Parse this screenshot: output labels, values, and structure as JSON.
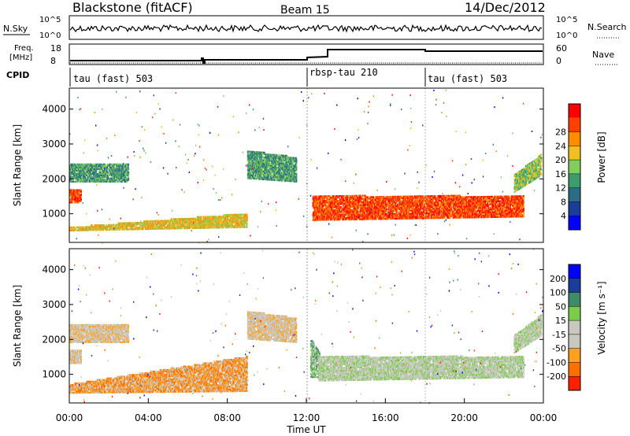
{
  "header": {
    "station": "Blackstone (fitACF)",
    "beam": "Beam 15",
    "date": "14/Dec/2012"
  },
  "top_panels": {
    "nsky_label": "N.Sky",
    "nsearch_label": "N.Search",
    "noise_ticks": [
      "10^5",
      "10^0"
    ],
    "freq_label_line1": "Freq.",
    "freq_label_line2": "[MHz]",
    "freq_ticks": [
      "18",
      "8"
    ],
    "nave_ticks": [
      "60",
      "0"
    ],
    "nave_label": "Nave",
    "cpid_label": "CPID",
    "cpid_segments": [
      {
        "label": "tau (fast) 503",
        "start_h": 0
      },
      {
        "label": "rbsp-tau 210",
        "start_h": 12.0
      },
      {
        "label": "tau (fast) 503",
        "start_h": 18.0
      }
    ]
  },
  "colors": {
    "power_scale": [
      "#0000ff",
      "#1c3c9c",
      "#2c6c84",
      "#3c9c6c",
      "#84cc5c",
      "#f0c020",
      "#ff8c00",
      "#ff4000",
      "#ff0000"
    ],
    "velocity_scale": [
      "#0000ff",
      "#1c3c9c",
      "#3c8c6c",
      "#7ccc4c",
      "#c8c8c0",
      "#c8c8c0",
      "#ffa020",
      "#ff7000",
      "#ff2000"
    ]
  },
  "chart_data": [
    {
      "type": "heatmap",
      "name": "Power",
      "xlabel": "Time UT",
      "ylabel": "Slant Range [km]",
      "x_range_h": [
        0,
        24
      ],
      "ylim": [
        180,
        4600
      ],
      "x_ticks": [
        "00:00",
        "04:00",
        "08:00",
        "12:00",
        "16:00",
        "20:00",
        "00:00"
      ],
      "y_ticks": [
        1000,
        2000,
        3000,
        4000
      ],
      "colorbar_label": "Power [dB]",
      "colorbar_ticks": [
        "4",
        "8",
        "12",
        "16",
        "20",
        "24",
        "28"
      ],
      "bands": [
        {
          "t0": 0.0,
          "t1": 9.0,
          "r0_start": 500,
          "r0_end": 600,
          "r1_start": 600,
          "r1_end": 1000,
          "dominant": 5
        },
        {
          "t0": 0.0,
          "t1": 0.6,
          "r0_start": 1300,
          "r0_end": 1300,
          "r1_start": 1700,
          "r1_end": 1700,
          "dominant": 7
        },
        {
          "t0": 0.0,
          "t1": 3.0,
          "r0_start": 1900,
          "r0_end": 1900,
          "r1_start": 2400,
          "r1_end": 2400,
          "dominant": 3
        },
        {
          "t0": 9.0,
          "t1": 11.5,
          "r0_start": 2000,
          "r0_end": 1900,
          "r1_start": 2800,
          "r1_end": 2600,
          "dominant": 3
        },
        {
          "t0": 12.3,
          "t1": 23.0,
          "r0_start": 800,
          "r0_end": 900,
          "r1_start": 1500,
          "r1_end": 1500,
          "dominant": 7
        },
        {
          "t0": 22.5,
          "t1": 23.9,
          "r0_start": 1600,
          "r0_end": 2100,
          "r1_start": 2100,
          "r1_end": 2700,
          "dominant": 4
        }
      ]
    },
    {
      "type": "heatmap",
      "name": "Velocity",
      "xlabel": "Time UT",
      "ylabel": "Slant Range [km]",
      "x_range_h": [
        0,
        24
      ],
      "ylim": [
        180,
        4600
      ],
      "x_ticks": [
        "00:00",
        "04:00",
        "08:00",
        "12:00",
        "16:00",
        "20:00",
        "00:00"
      ],
      "y_ticks": [
        1000,
        2000,
        3000,
        4000
      ],
      "colorbar_label": "Velocity [m s⁻¹]",
      "colorbar_ticks": [
        "200",
        "100",
        "50",
        "15",
        "-15",
        "-50",
        "-100",
        "-200"
      ],
      "bands": [
        {
          "t0": 0.0,
          "t1": 9.0,
          "r0_start": 450,
          "r0_end": 500,
          "r1_start": 700,
          "r1_end": 1500,
          "dominant": 6
        },
        {
          "t0": 0.0,
          "t1": 0.6,
          "r0_start": 1300,
          "r0_end": 1300,
          "r1_start": 1700,
          "r1_end": 1700,
          "dominant": 5
        },
        {
          "t0": 0.0,
          "t1": 3.0,
          "r0_start": 1900,
          "r0_end": 1900,
          "r1_start": 2400,
          "r1_end": 2400,
          "dominant": 5
        },
        {
          "t0": 9.0,
          "t1": 11.5,
          "r0_start": 2000,
          "r0_end": 1900,
          "r1_start": 2800,
          "r1_end": 2600,
          "dominant": 5
        },
        {
          "t0": 12.2,
          "t1": 12.7,
          "r0_start": 900,
          "r0_end": 900,
          "r1_start": 2000,
          "r1_end": 1600,
          "dominant": 3
        },
        {
          "t0": 12.6,
          "t1": 23.0,
          "r0_start": 800,
          "r0_end": 900,
          "r1_start": 1500,
          "r1_end": 1500,
          "dominant": 4
        },
        {
          "t0": 22.5,
          "t1": 23.9,
          "r0_start": 1600,
          "r0_end": 2100,
          "r1_start": 2100,
          "r1_end": 2700,
          "dominant": 4
        }
      ]
    }
  ]
}
